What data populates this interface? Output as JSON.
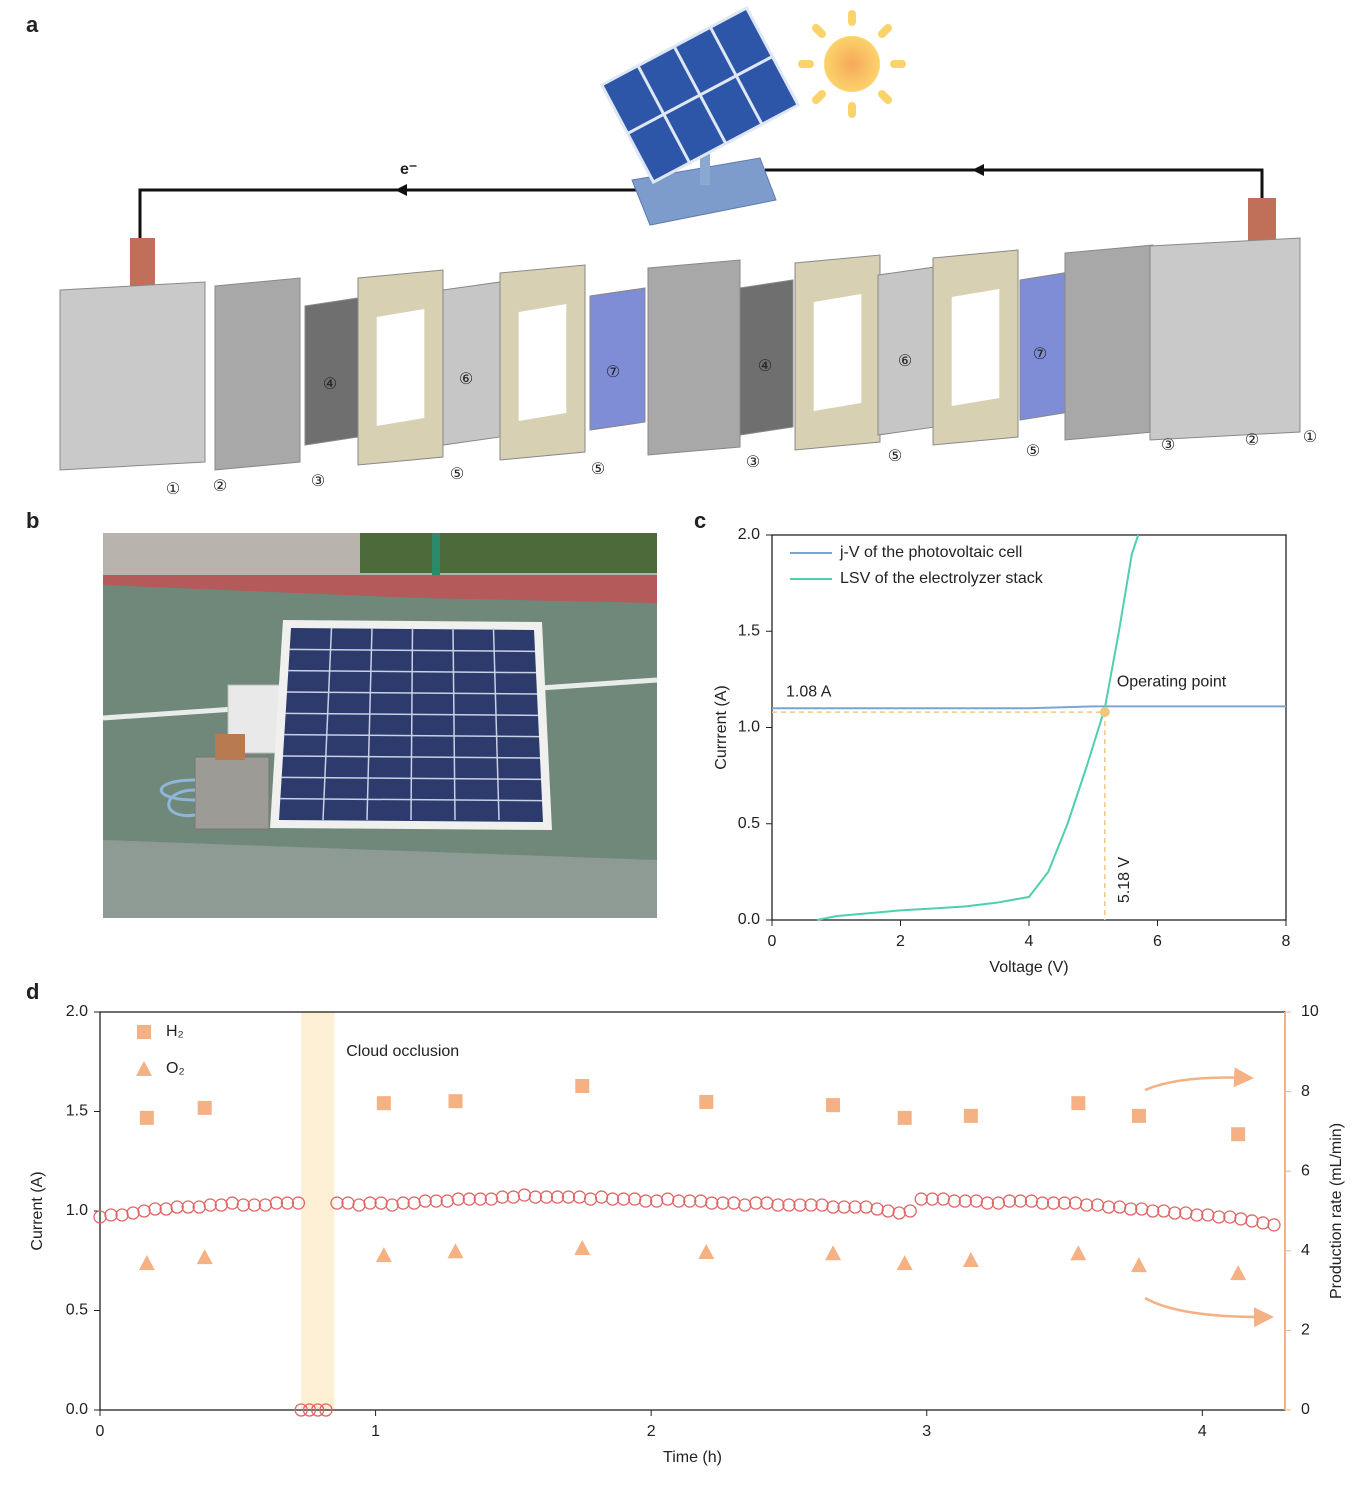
{
  "panel_labels": [
    "a",
    "b",
    "c",
    "d"
  ],
  "diagram": {
    "electron_label": "e⁻",
    "part_labels": [
      "①",
      "②",
      "③",
      "④",
      "⑤",
      "⑥",
      "⑤",
      "⑦",
      "③",
      "④",
      "⑤",
      "⑥",
      "⑤",
      "⑦",
      "③",
      "②",
      "①"
    ]
  },
  "chart_data": [
    {
      "type": "line",
      "xlabel": "Voltage (V)",
      "ylabel": "Currrent (A)",
      "xlim": [
        0,
        8
      ],
      "ylim": [
        0,
        2
      ],
      "xticks": [
        0,
        2,
        4,
        6,
        8
      ],
      "yticks": [
        {
          "value": 0,
          "label": "0.0"
        },
        {
          "value": 0.5,
          "label": "0.5"
        },
        {
          "value": 1,
          "label": "1.0"
        },
        {
          "value": 1.5,
          "label": "1.5"
        },
        {
          "value": 2,
          "label": "2.0"
        }
      ],
      "legend": "upper left",
      "series": [
        {
          "name": "j-V of the photovoltaic cell",
          "color": "#7aa6d6",
          "x": [
            0,
            1,
            2,
            3,
            4,
            5,
            6,
            7,
            8
          ],
          "values": [
            1.1,
            1.1,
            1.1,
            1.1,
            1.1,
            1.11,
            1.11,
            1.11,
            1.11
          ]
        },
        {
          "name": "LSV of the electrolyzer stack",
          "color": "#4fcfb0",
          "x": [
            0.7,
            1,
            1.5,
            2,
            2.5,
            3,
            3.5,
            4,
            4.3,
            4.6,
            4.9,
            5.18,
            5.4,
            5.6,
            5.7
          ],
          "values": [
            0,
            0.02,
            0.035,
            0.05,
            0.06,
            0.07,
            0.09,
            0.12,
            0.25,
            0.5,
            0.8,
            1.1,
            1.5,
            1.9,
            2.0
          ]
        }
      ],
      "operating_point": {
        "label": "Operating point",
        "x": 5.18,
        "y": 1.08,
        "x_label": "5.18 V",
        "y_label": "1.08 A",
        "color": "#f2c77c"
      }
    },
    {
      "type": "scatter",
      "xlabel": "Time (h)",
      "ylabel": "Current (A)",
      "y2label": "Production rate (mL/min)",
      "xlim": [
        0,
        4.3
      ],
      "ylim": [
        0,
        2
      ],
      "y2lim": [
        0,
        10
      ],
      "xticks": [
        0,
        1,
        2,
        3,
        4
      ],
      "yticks": [
        {
          "value": 0,
          "label": "0.0"
        },
        {
          "value": 0.5,
          "label": "0.5"
        },
        {
          "value": 1,
          "label": "1.0"
        },
        {
          "value": 1.5,
          "label": "1.5"
        },
        {
          "value": 2,
          "label": "2.0"
        }
      ],
      "y2ticks": [
        0,
        2,
        4,
        6,
        8,
        10
      ],
      "y2color": "#f4b183",
      "legend": "upper left",
      "shade": {
        "label": "Cloud occlusion",
        "xlim": [
          0.73,
          0.85
        ],
        "color": "#fcefd4"
      },
      "series": [
        {
          "color": "#e06666",
          "marker": "circle",
          "axis": "y",
          "x": [
            0,
            0.04,
            0.08,
            0.12,
            0.16,
            0.2,
            0.24,
            0.28,
            0.32,
            0.36,
            0.4,
            0.44,
            0.48,
            0.52,
            0.56,
            0.6,
            0.64,
            0.68,
            0.72,
            0.73,
            0.76,
            0.79,
            0.82,
            0.86,
            0.9,
            0.94,
            0.98,
            1.02,
            1.06,
            1.1,
            1.14,
            1.18,
            1.22,
            1.26,
            1.3,
            1.34,
            1.38,
            1.42,
            1.46,
            1.5,
            1.54,
            1.58,
            1.62,
            1.66,
            1.7,
            1.74,
            1.78,
            1.82,
            1.86,
            1.9,
            1.94,
            1.98,
            2.02,
            2.06,
            2.1,
            2.14,
            2.18,
            2.22,
            2.26,
            2.3,
            2.34,
            2.38,
            2.42,
            2.46,
            2.5,
            2.54,
            2.58,
            2.62,
            2.66,
            2.7,
            2.74,
            2.78,
            2.82,
            2.86,
            2.9,
            2.94,
            2.98,
            3.02,
            3.06,
            3.1,
            3.14,
            3.18,
            3.22,
            3.26,
            3.3,
            3.34,
            3.38,
            3.42,
            3.46,
            3.5,
            3.54,
            3.58,
            3.62,
            3.66,
            3.7,
            3.74,
            3.78,
            3.82,
            3.86,
            3.9,
            3.94,
            3.98,
            4.02,
            4.06,
            4.1,
            4.14,
            4.18,
            4.22,
            4.26
          ],
          "values": [
            0.97,
            0.98,
            0.98,
            0.99,
            1.0,
            1.01,
            1.01,
            1.02,
            1.02,
            1.02,
            1.03,
            1.03,
            1.04,
            1.03,
            1.03,
            1.03,
            1.04,
            1.04,
            1.04,
            0,
            0,
            0,
            0,
            1.04,
            1.04,
            1.03,
            1.04,
            1.04,
            1.03,
            1.04,
            1.04,
            1.05,
            1.05,
            1.05,
            1.06,
            1.06,
            1.06,
            1.06,
            1.07,
            1.07,
            1.08,
            1.07,
            1.07,
            1.07,
            1.07,
            1.07,
            1.06,
            1.07,
            1.06,
            1.06,
            1.06,
            1.05,
            1.05,
            1.06,
            1.05,
            1.05,
            1.05,
            1.04,
            1.04,
            1.04,
            1.03,
            1.04,
            1.04,
            1.03,
            1.03,
            1.03,
            1.03,
            1.03,
            1.02,
            1.02,
            1.02,
            1.02,
            1.01,
            1.0,
            0.99,
            1.0,
            1.06,
            1.06,
            1.06,
            1.05,
            1.05,
            1.05,
            1.04,
            1.04,
            1.05,
            1.05,
            1.05,
            1.04,
            1.04,
            1.04,
            1.04,
            1.03,
            1.03,
            1.02,
            1.02,
            1.01,
            1.01,
            1.0,
            1.0,
            0.99,
            0.99,
            0.98,
            0.98,
            0.97,
            0.97,
            0.96,
            0.95,
            0.94,
            0.93
          ]
        },
        {
          "name": "H₂",
          "color": "#f4b183",
          "marker": "square",
          "axis": "y2",
          "x": [
            0.17,
            0.38,
            1.03,
            1.29,
            1.75,
            2.2,
            2.66,
            2.92,
            3.16,
            3.55,
            3.77,
            4.13
          ],
          "values": [
            7.34,
            7.59,
            7.71,
            7.76,
            8.14,
            7.74,
            7.66,
            7.34,
            7.39,
            7.71,
            7.39,
            6.93
          ]
        },
        {
          "name": "O₂",
          "color": "#f4b183",
          "marker": "triangle",
          "axis": "y2",
          "x": [
            0.17,
            0.38,
            1.03,
            1.29,
            1.75,
            2.2,
            2.66,
            2.92,
            3.16,
            3.55,
            3.77,
            4.13
          ],
          "values": [
            3.69,
            3.84,
            3.89,
            3.99,
            4.07,
            3.97,
            3.94,
            3.69,
            3.77,
            3.94,
            3.64,
            3.44
          ]
        }
      ]
    }
  ]
}
